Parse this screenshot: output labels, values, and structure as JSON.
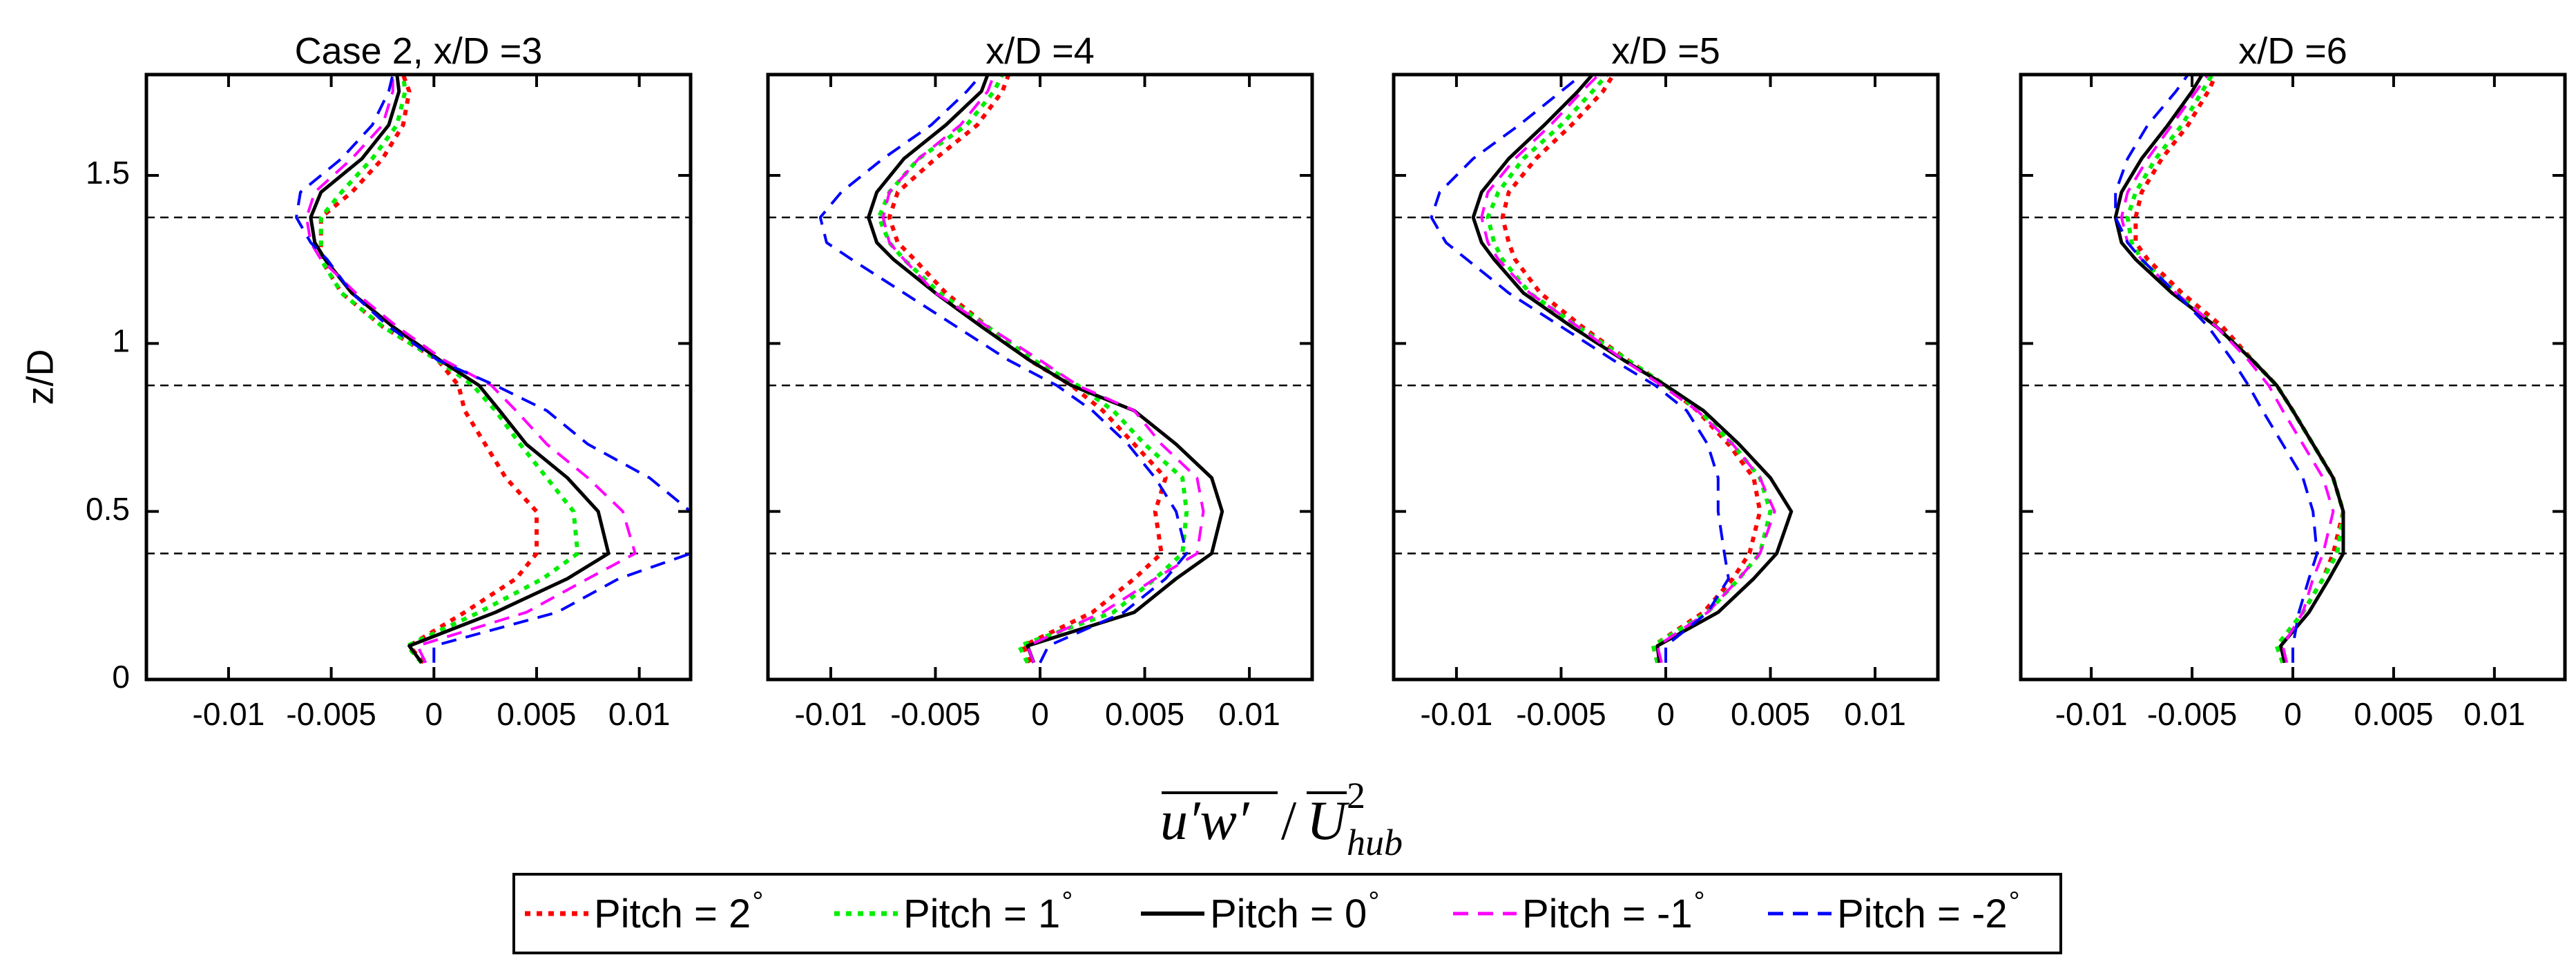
{
  "figure": {
    "xlabel": "u'w'/U_hub^2",
    "xlabel_parts": {
      "numerator": "u′w′",
      "slash": "/",
      "denominator": "U",
      "superscript": "2",
      "subscript": "hub"
    },
    "ylabel": "z/D"
  },
  "legend": {
    "degree_symbol": "°",
    "entries": [
      {
        "label": "Pitch = 2",
        "color": "#ff0000",
        "style": "dotted"
      },
      {
        "label": "Pitch = 1",
        "color": "#00ee00",
        "style": "dotted"
      },
      {
        "label": "Pitch = 0",
        "color": "#000000",
        "style": "solid"
      },
      {
        "label": "Pitch = -1",
        "color": "#ff00ff",
        "style": "dashed"
      },
      {
        "label": "Pitch = -2",
        "color": "#0000ff",
        "style": "dashed"
      }
    ]
  },
  "chart_data": [
    {
      "type": "line",
      "title": "Case 2, x/D =3",
      "xlim": [
        -0.014,
        0.0125
      ],
      "ylim": [
        0,
        1.8
      ],
      "xticks": [
        -0.01,
        -0.005,
        0,
        0.005,
        0.01
      ],
      "xtick_labels": [
        "-0.01",
        "-0.005",
        "0",
        "0.005",
        "0.01"
      ],
      "yticks": [
        0,
        0.5,
        1,
        1.5
      ],
      "ytick_labels": [
        "0",
        "0.5",
        "1",
        "1.5"
      ],
      "hlines": [
        0.375,
        0.875,
        1.375
      ],
      "y": [
        0.05,
        0.1,
        0.2,
        0.3,
        0.375,
        0.5,
        0.6,
        0.7,
        0.8,
        0.875,
        0.95,
        1.05,
        1.15,
        1.25,
        1.3,
        1.375,
        1.45,
        1.55,
        1.65,
        1.75,
        1.8
      ],
      "series": [
        {
          "name": "Pitch = 2",
          "x": [
            -0.0005,
            -0.0012,
            0.0015,
            0.004,
            0.005,
            0.005,
            0.0035,
            0.0025,
            0.0015,
            0.0012,
            0.0002,
            -0.0025,
            -0.0045,
            -0.0055,
            -0.0055,
            -0.0055,
            -0.004,
            -0.0025,
            -0.0015,
            -0.0012,
            -0.0015
          ]
        },
        {
          "name": "Pitch = 1",
          "x": [
            -0.0006,
            -0.0013,
            0.0022,
            0.0053,
            0.007,
            0.0068,
            0.0055,
            0.0042,
            0.003,
            0.0019,
            0.0002,
            -0.0025,
            -0.0045,
            -0.0055,
            -0.0055,
            -0.0055,
            -0.0045,
            -0.003,
            -0.0018,
            -0.0014,
            -0.0015
          ]
        },
        {
          "name": "Pitch = 0",
          "x": [
            -0.0006,
            -0.0012,
            0.003,
            0.0065,
            0.0085,
            0.008,
            0.0065,
            0.0045,
            0.0032,
            0.0022,
            0.0003,
            -0.002,
            -0.004,
            -0.0053,
            -0.0058,
            -0.006,
            -0.0055,
            -0.0035,
            -0.0022,
            -0.0017,
            -0.0018
          ]
        },
        {
          "name": "Pitch = -1",
          "x": [
            -0.0004,
            -0.0008,
            0.0045,
            0.0075,
            0.0098,
            0.0092,
            0.0075,
            0.0055,
            0.004,
            0.0028,
            0.0005,
            -0.0018,
            -0.0038,
            -0.0055,
            -0.006,
            -0.0062,
            -0.0058,
            -0.004,
            -0.0025,
            -0.002,
            -0.002
          ]
        },
        {
          "name": "Pitch = -2",
          "x": [
            0.0,
            0.0,
            0.006,
            0.009,
            0.0125,
            0.0125,
            0.0105,
            0.0075,
            0.0055,
            0.003,
            0.0002,
            -0.0022,
            -0.004,
            -0.0052,
            -0.006,
            -0.0067,
            -0.0065,
            -0.0045,
            -0.003,
            -0.0022,
            -0.002
          ]
        }
      ]
    },
    {
      "type": "line",
      "title": "x/D =4",
      "xlim": [
        -0.013,
        0.013
      ],
      "ylim": [
        0,
        1.8
      ],
      "xticks": [
        -0.01,
        -0.005,
        0,
        0.005,
        0.01
      ],
      "xtick_labels": [
        "-0.01",
        "-0.005",
        "0",
        "0.005",
        "0.01"
      ],
      "yticks": [
        0,
        0.5,
        1,
        1.5
      ],
      "hlines": [
        0.375,
        0.875,
        1.375
      ],
      "y": [
        0.05,
        0.1,
        0.2,
        0.3,
        0.375,
        0.5,
        0.6,
        0.7,
        0.8,
        0.875,
        0.95,
        1.05,
        1.15,
        1.25,
        1.3,
        1.375,
        1.45,
        1.55,
        1.65,
        1.75,
        1.8
      ],
      "series": [
        {
          "name": "Pitch = 2",
          "x": [
            -0.0005,
            -0.0008,
            0.0025,
            0.0045,
            0.0058,
            0.0055,
            0.006,
            0.0045,
            0.003,
            0.0015,
            -0.0005,
            -0.0025,
            -0.0045,
            -0.006,
            -0.0068,
            -0.0072,
            -0.0068,
            -0.005,
            -0.003,
            -0.0018,
            -0.0015
          ]
        },
        {
          "name": "Pitch = 1",
          "x": [
            -0.0006,
            -0.001,
            0.0035,
            0.0055,
            0.0068,
            0.007,
            0.0068,
            0.005,
            0.0035,
            0.0018,
            -0.0003,
            -0.0025,
            -0.0048,
            -0.0065,
            -0.0072,
            -0.0077,
            -0.0072,
            -0.0058,
            -0.0035,
            -0.0022,
            -0.0018
          ]
        },
        {
          "name": "Pitch = 0",
          "x": [
            -0.0003,
            -0.0006,
            0.0045,
            0.0065,
            0.0082,
            0.0087,
            0.0082,
            0.0065,
            0.0045,
            0.0015,
            -0.0005,
            -0.0028,
            -0.005,
            -0.007,
            -0.0078,
            -0.0082,
            -0.0078,
            -0.0065,
            -0.0045,
            -0.0028,
            -0.0025
          ]
        },
        {
          "name": "Pitch = -1",
          "x": [
            -0.0003,
            -0.0006,
            0.003,
            0.0055,
            0.0075,
            0.0078,
            0.0075,
            0.0058,
            0.0045,
            0.0018,
            0.0,
            -0.0025,
            -0.005,
            -0.0065,
            -0.0072,
            -0.0075,
            -0.0072,
            -0.0058,
            -0.0038,
            -0.0025,
            -0.0022
          ]
        },
        {
          "name": "Pitch = -2",
          "x": [
            0.0,
            0.0004,
            0.004,
            0.006,
            0.007,
            0.0065,
            0.0055,
            0.0042,
            0.0025,
            0.0008,
            -0.0015,
            -0.004,
            -0.0065,
            -0.009,
            -0.0102,
            -0.0105,
            -0.0095,
            -0.0075,
            -0.0052,
            -0.0035,
            -0.0028
          ]
        }
      ]
    },
    {
      "type": "line",
      "title": "x/D =5",
      "xlim": [
        -0.013,
        0.013
      ],
      "ylim": [
        0,
        1.8
      ],
      "xticks": [
        -0.01,
        -0.005,
        0,
        0.005,
        0.01
      ],
      "xtick_labels": [
        "-0.01",
        "-0.005",
        "0",
        "0.005",
        "0.01"
      ],
      "yticks": [
        0,
        0.5,
        1,
        1.5
      ],
      "hlines": [
        0.375,
        0.875,
        1.375
      ],
      "y": [
        0.05,
        0.1,
        0.2,
        0.3,
        0.375,
        0.5,
        0.6,
        0.7,
        0.8,
        0.875,
        0.95,
        1.05,
        1.15,
        1.25,
        1.3,
        1.375,
        1.45,
        1.55,
        1.65,
        1.75,
        1.8
      ],
      "series": [
        {
          "name": "Pitch = 2",
          "x": [
            -0.0004,
            -0.0006,
            0.0018,
            0.0032,
            0.004,
            0.0045,
            0.0042,
            0.003,
            0.0015,
            0.0,
            -0.0018,
            -0.004,
            -0.006,
            -0.0072,
            -0.0075,
            -0.0078,
            -0.0075,
            -0.0062,
            -0.0045,
            -0.003,
            -0.0025
          ]
        },
        {
          "name": "Pitch = 1",
          "x": [
            -0.0004,
            -0.0006,
            0.002,
            0.0035,
            0.0045,
            0.005,
            0.0045,
            0.0032,
            0.0016,
            0.0,
            -0.0018,
            -0.0042,
            -0.0065,
            -0.0078,
            -0.0082,
            -0.0085,
            -0.008,
            -0.0068,
            -0.005,
            -0.0035,
            -0.0028
          ]
        },
        {
          "name": "Pitch = 0",
          "x": [
            -0.0003,
            -0.0004,
            0.0025,
            0.0042,
            0.0053,
            0.006,
            0.005,
            0.0035,
            0.0018,
            0.0,
            -0.002,
            -0.0045,
            -0.0068,
            -0.0082,
            -0.0088,
            -0.0092,
            -0.0088,
            -0.0075,
            -0.0058,
            -0.0042,
            -0.0035
          ]
        },
        {
          "name": "Pitch = -1",
          "x": [
            -0.0002,
            -0.0004,
            0.002,
            0.0035,
            0.0045,
            0.0052,
            0.0045,
            0.0032,
            0.0015,
            -0.0002,
            -0.002,
            -0.0042,
            -0.0065,
            -0.008,
            -0.0085,
            -0.0088,
            -0.0085,
            -0.0072,
            -0.0055,
            -0.004,
            -0.0032
          ]
        },
        {
          "name": "Pitch = -2",
          "x": [
            0.0,
            0.0,
            0.002,
            0.003,
            0.0028,
            0.0025,
            0.0025,
            0.002,
            0.001,
            -0.0005,
            -0.0025,
            -0.005,
            -0.0075,
            -0.0095,
            -0.0105,
            -0.0112,
            -0.0108,
            -0.0092,
            -0.007,
            -0.005,
            -0.004
          ]
        }
      ]
    },
    {
      "type": "line",
      "title": "x/D =6",
      "xlim": [
        -0.0135,
        0.0135
      ],
      "ylim": [
        0,
        1.8
      ],
      "xticks": [
        -0.01,
        -0.005,
        0,
        0.005,
        0.01
      ],
      "xtick_labels": [
        "-0.01",
        "-0.005",
        "0",
        "0.005",
        "0.01"
      ],
      "yticks": [
        0,
        0.5,
        1,
        1.5
      ],
      "hlines": [
        0.375,
        0.875,
        1.375
      ],
      "y": [
        0.05,
        0.1,
        0.2,
        0.3,
        0.375,
        0.5,
        0.6,
        0.7,
        0.8,
        0.875,
        0.95,
        1.05,
        1.15,
        1.25,
        1.3,
        1.375,
        1.45,
        1.55,
        1.65,
        1.75,
        1.8
      ],
      "series": [
        {
          "name": "Pitch = 2",
          "x": [
            -0.0005,
            -0.0008,
            0.0005,
            0.0015,
            0.002,
            0.0025,
            0.002,
            0.001,
            0.0,
            -0.0008,
            -0.002,
            -0.0035,
            -0.0055,
            -0.0072,
            -0.0078,
            -0.0078,
            -0.0075,
            -0.0065,
            -0.0052,
            -0.0042,
            -0.0038
          ]
        },
        {
          "name": "Pitch = 1",
          "x": [
            -0.0005,
            -0.0008,
            0.0005,
            0.0015,
            0.0022,
            0.0025,
            0.002,
            0.001,
            0.0,
            -0.0008,
            -0.002,
            -0.0038,
            -0.0058,
            -0.0075,
            -0.008,
            -0.0082,
            -0.0078,
            -0.0068,
            -0.0055,
            -0.0045,
            -0.004
          ]
        },
        {
          "name": "Pitch = 0",
          "x": [
            -0.0004,
            -0.0006,
            0.0008,
            0.0018,
            0.0025,
            0.0025,
            0.002,
            0.001,
            0.0,
            -0.0008,
            -0.002,
            -0.0038,
            -0.006,
            -0.0078,
            -0.0085,
            -0.0088,
            -0.0085,
            -0.0075,
            -0.0062,
            -0.005,
            -0.0045
          ]
        },
        {
          "name": "Pitch = -1",
          "x": [
            -0.0003,
            -0.0005,
            0.0005,
            0.001,
            0.0015,
            0.002,
            0.0015,
            0.0005,
            -0.0005,
            -0.0012,
            -0.0022,
            -0.0038,
            -0.0058,
            -0.0075,
            -0.0082,
            -0.0085,
            -0.0082,
            -0.0072,
            -0.006,
            -0.0048,
            -0.0042
          ]
        },
        {
          "name": "Pitch = -2",
          "x": [
            0.0,
            0.0,
            0.0003,
            0.0008,
            0.0012,
            0.001,
            0.0005,
            -0.0005,
            -0.0015,
            -0.0022,
            -0.003,
            -0.0042,
            -0.0058,
            -0.0075,
            -0.0082,
            -0.0088,
            -0.0088,
            -0.0082,
            -0.0072,
            -0.0058,
            -0.0052
          ]
        }
      ]
    }
  ]
}
